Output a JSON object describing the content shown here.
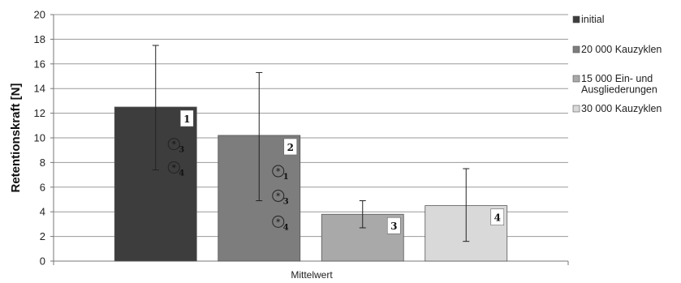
{
  "chart_data": {
    "type": "bar",
    "title": "",
    "xlabel": "Mittelwert",
    "ylabel": "Retentionskraft [N]",
    "ylim": [
      0,
      20
    ],
    "y_ticks": [
      0,
      2,
      4,
      6,
      8,
      10,
      12,
      14,
      16,
      18,
      20
    ],
    "grid": true,
    "legend_position": "right",
    "categories": [
      "Mittelwert"
    ],
    "series": [
      {
        "name": "initial",
        "values": [
          12.5
        ],
        "error_low": [
          7.4
        ],
        "error_high": [
          17.5
        ],
        "color": "#3d3d3d",
        "number_label": "1",
        "markers": [
          {
            "text": "3",
            "y": 9.5
          },
          {
            "text": "4",
            "y": 7.6
          }
        ]
      },
      {
        "name": "20 000 Kauzyklen",
        "values": [
          10.2
        ],
        "error_low": [
          4.9
        ],
        "error_high": [
          15.3
        ],
        "color": "#7d7d7d",
        "number_label": "2",
        "markers": [
          {
            "text": "1",
            "y": 7.3
          },
          {
            "text": "3",
            "y": 5.3
          },
          {
            "text": "4",
            "y": 3.2
          }
        ]
      },
      {
        "name": "15 000 Ein- und Ausgliederungen",
        "name_lines": [
          "15 000 Ein- und",
          "Ausgliederungen"
        ],
        "values": [
          3.8
        ],
        "error_low": [
          2.7
        ],
        "error_high": [
          4.9
        ],
        "color": "#a9a9a9",
        "number_label": "3",
        "markers": []
      },
      {
        "name": "30 000 Kauzyklen",
        "values": [
          4.5
        ],
        "error_low": [
          1.6
        ],
        "error_high": [
          7.5
        ],
        "color": "#d9d9d9",
        "number_label": "4",
        "markers": []
      }
    ]
  }
}
